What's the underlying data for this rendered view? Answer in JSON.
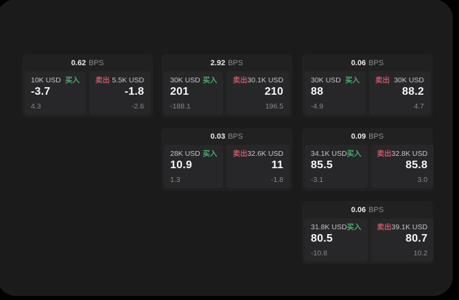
{
  "labels": {
    "bps": "BPS",
    "buy": "买入",
    "sell": "卖出"
  },
  "colors": {
    "buy_green": "#4cab6e",
    "sell_red": "#c25864",
    "panel_bg": "#1b1b1c",
    "card_bg": "#212122",
    "tile_bg": "#272729"
  },
  "cards": [
    {
      "bps_value": "0.62",
      "buy": {
        "amount": "10K USD",
        "price": "-3.7",
        "delta": "4.3"
      },
      "sell": {
        "amount": "5.5K USD",
        "price": "-1.8",
        "delta": "-2.6"
      }
    },
    {
      "bps_value": "2.92",
      "buy": {
        "amount": "30K USD",
        "price": "201",
        "delta": "-188.1"
      },
      "sell": {
        "amount": "30.1K USD",
        "price": "210",
        "delta": "196.5"
      }
    },
    {
      "bps_value": "0.06",
      "buy": {
        "amount": "30K USD",
        "price": "88",
        "delta": "-4.9"
      },
      "sell": {
        "amount": "30K USD",
        "price": "88.2",
        "delta": "4.7"
      }
    },
    {
      "bps_value": "0.03",
      "buy": {
        "amount": "28K USD",
        "price": "10.9",
        "delta": "1.3"
      },
      "sell": {
        "amount": "32.6K USD",
        "price": "11",
        "delta": "-1.8"
      }
    },
    {
      "bps_value": "0.09",
      "buy": {
        "amount": "34.1K USD",
        "price": "85.5",
        "delta": "-3.1"
      },
      "sell": {
        "amount": "32.8K USD",
        "price": "85.8",
        "delta": "3.0"
      }
    },
    {
      "bps_value": "0.06",
      "buy": {
        "amount": "31.8K USD",
        "price": "80.5",
        "delta": "-10.8"
      },
      "sell": {
        "amount": "39.1K USD",
        "price": "80.7",
        "delta": "10.2"
      }
    }
  ]
}
